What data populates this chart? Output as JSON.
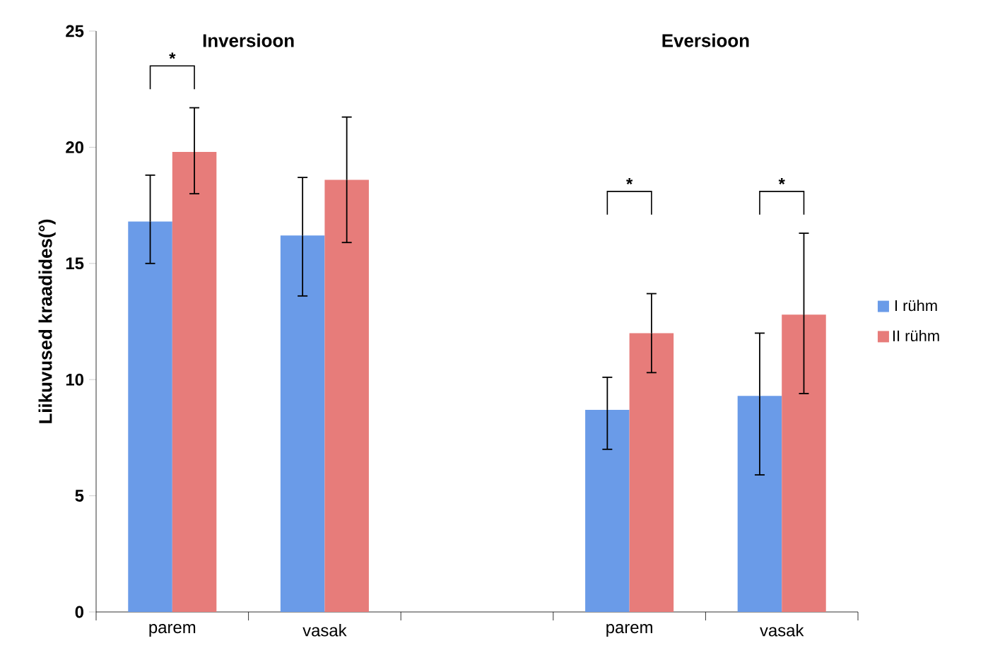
{
  "chart_data": {
    "type": "bar",
    "ylabel": "Liikuvused kraadides(°)",
    "categories": [
      "parem",
      "vasak",
      null,
      "parem",
      "vasak"
    ],
    "series": [
      {
        "name": "I rühm",
        "color": "#6a9be8",
        "values": [
          16.8,
          16.2,
          null,
          8.7,
          9.3
        ],
        "errors": [
          [
            15.0,
            18.8
          ],
          [
            13.6,
            18.7
          ],
          null,
          [
            7.0,
            10.1
          ],
          [
            5.9,
            12.0
          ]
        ]
      },
      {
        "name": "II rühm",
        "color": "#e77c7a",
        "values": [
          19.8,
          18.6,
          null,
          12.0,
          12.8
        ],
        "errors": [
          [
            18.0,
            21.7
          ],
          [
            15.9,
            21.3
          ],
          null,
          [
            10.3,
            13.7
          ],
          [
            9.4,
            16.3
          ]
        ]
      }
    ],
    "ylim": [
      0,
      25
    ],
    "yticks": [
      0,
      5,
      10,
      15,
      20,
      25
    ],
    "grid": false,
    "legend": "right",
    "annotations": [
      "Inversioon",
      "Eversioon",
      "*",
      "*",
      "*"
    ]
  }
}
